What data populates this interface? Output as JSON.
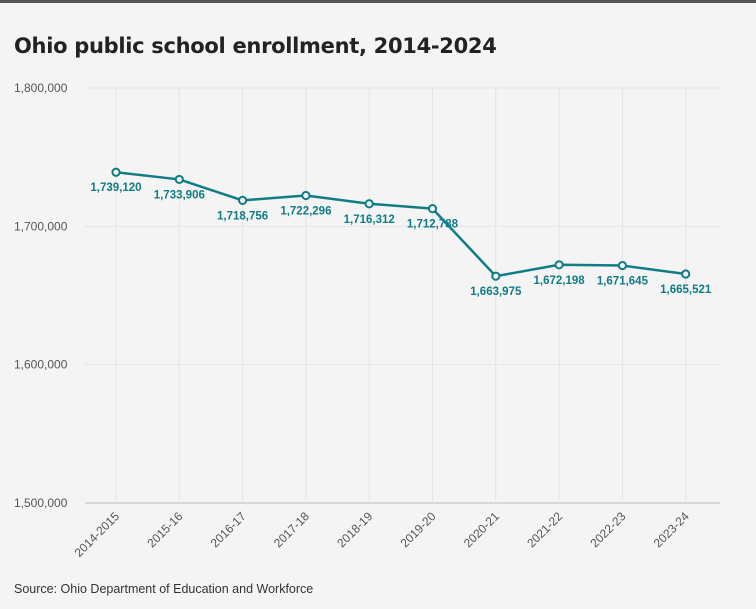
{
  "chart_data": {
    "type": "line",
    "title": "Ohio public school enrollment, 2014-2024",
    "source": "Source: Ohio Department of Education and Workforce",
    "categories": [
      "2014-2015",
      "2015-16",
      "2016-17",
      "2017-18",
      "2018-19",
      "2019-20",
      "2020-21",
      "2021-22",
      "2022-23",
      "2023-24"
    ],
    "values": [
      1739120,
      1733906,
      1718756,
      1722296,
      1716312,
      1712788,
      1663975,
      1672198,
      1671645,
      1665521
    ],
    "value_labels": [
      "1,739,120",
      "1,733,906",
      "1,718,756",
      "1,722,296",
      "1,716,312",
      "1,712,788",
      "1,663,975",
      "1,672,198",
      "1,671,645",
      "1,665,521"
    ],
    "ylim": [
      1500000,
      1800000
    ],
    "yticks": [
      1500000,
      1600000,
      1700000,
      1800000
    ],
    "ytick_labels": [
      "1,500,000",
      "1,600,000",
      "1,700,000",
      "1,800,000"
    ],
    "grid": true,
    "color": "#0f7c86"
  }
}
